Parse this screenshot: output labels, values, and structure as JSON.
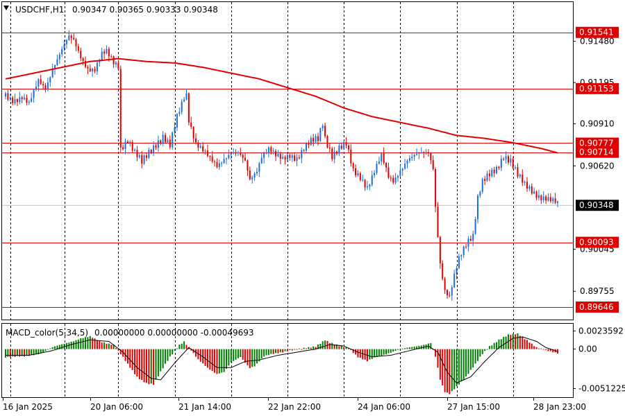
{
  "chart_header": {
    "symbol_tf": "USDCHF,H1",
    "ohlc": "0.90347 0.90365 0.90333 0.90348",
    "menu_icon": "triangle-down-icon"
  },
  "macd_header": {
    "name": "MACD_color(5,34,5)",
    "values": "0.00000000 0.00000000 -0.00049693"
  },
  "colors": {
    "bull_candle": "#1e6fd9",
    "bear_candle": "#e00000",
    "ma_line": "#e00000",
    "level_line": "#e00000",
    "macd_up": "#008000",
    "macd_down": "#e00000",
    "signal_line": "#000000",
    "grid": "#000000"
  },
  "chart_data": [
    {
      "type": "candlestick",
      "title": "USDCHF,H1",
      "y_ticks": [
        "0.91480",
        "0.91195",
        "0.90910",
        "0.90620",
        "0.90045",
        "0.89755"
      ],
      "ylim": [
        0.8956,
        0.9175
      ],
      "price_levels": [
        {
          "label": "0.91541",
          "value": 0.91541
        },
        {
          "label": "0.91153",
          "value": 0.91153
        },
        {
          "label": "0.90777",
          "value": 0.90777
        },
        {
          "label": "0.90714",
          "value": 0.90714
        },
        {
          "label": "0.90093",
          "value": 0.90093
        },
        {
          "label": "0.89646",
          "value": 0.89646
        }
      ],
      "current_price": {
        "label": "0.90348",
        "value": 0.90348
      },
      "x_ticks": [
        "16 Jan 2025",
        "20 Jan 06:00",
        "21 Jan 14:00",
        "22 Jan 22:00",
        "24 Jan 06:00",
        "27 Jan 15:00",
        "28 Jan 23:00"
      ],
      "close_path": [
        [
          0,
          0.911
        ],
        [
          3,
          0.9108
        ],
        [
          7,
          0.911
        ],
        [
          10,
          0.9104
        ],
        [
          14,
          0.912
        ],
        [
          17,
          0.9116
        ],
        [
          20,
          0.913
        ],
        [
          24,
          0.9142
        ],
        [
          27,
          0.915
        ],
        [
          29,
          0.9148
        ],
        [
          32,
          0.9138
        ],
        [
          35,
          0.913
        ],
        [
          38,
          0.9128
        ],
        [
          41,
          0.9138
        ],
        [
          43,
          0.914
        ],
        [
          46,
          0.9134
        ],
        [
          48,
          0.9132
        ],
        [
          49,
          0.9075
        ],
        [
          52,
          0.908
        ],
        [
          55,
          0.907
        ],
        [
          58,
          0.9064
        ],
        [
          61,
          0.9072
        ],
        [
          64,
          0.9078
        ],
        [
          67,
          0.9082
        ],
        [
          70,
          0.9075
        ],
        [
          73,
          0.9095
        ],
        [
          76,
          0.911
        ],
        [
          77,
          0.9112
        ],
        [
          78,
          0.9095
        ],
        [
          81,
          0.9078
        ],
        [
          84,
          0.9072
        ],
        [
          87,
          0.9066
        ],
        [
          90,
          0.9062
        ],
        [
          93,
          0.9068
        ],
        [
          96,
          0.9072
        ],
        [
          99,
          0.907
        ],
        [
          102,
          0.9064
        ],
        [
          104,
          0.9052
        ],
        [
          107,
          0.906
        ],
        [
          109,
          0.907
        ],
        [
          112,
          0.9074
        ],
        [
          115,
          0.9068
        ],
        [
          118,
          0.9066
        ],
        [
          121,
          0.907
        ],
        [
          124,
          0.9068
        ],
        [
          127,
          0.9074
        ],
        [
          130,
          0.9078
        ],
        [
          133,
          0.908
        ],
        [
          135,
          0.9092
        ],
        [
          136,
          0.9082
        ],
        [
          139,
          0.907
        ],
        [
          142,
          0.9074
        ],
        [
          145,
          0.9076
        ],
        [
          148,
          0.9058
        ],
        [
          151,
          0.9055
        ],
        [
          154,
          0.9048
        ],
        [
          157,
          0.9058
        ],
        [
          160,
          0.9068
        ],
        [
          163,
          0.9054
        ],
        [
          165,
          0.9052
        ],
        [
          168,
          0.906
        ],
        [
          171,
          0.9066
        ],
        [
          174,
          0.9068
        ],
        [
          177,
          0.907
        ],
        [
          180,
          0.9072
        ],
        [
          182,
          0.9062
        ],
        [
          183,
          0.9035
        ],
        [
          185,
          0.8995
        ],
        [
          187,
          0.8975
        ],
        [
          189,
          0.897
        ],
        [
          191,
          0.8985
        ],
        [
          193,
          0.8998
        ],
        [
          195,
          0.9006
        ],
        [
          197,
          0.9012
        ],
        [
          199,
          0.9015
        ],
        [
          201,
          0.904
        ],
        [
          203,
          0.905
        ],
        [
          206,
          0.9055
        ],
        [
          209,
          0.906
        ],
        [
          212,
          0.907
        ],
        [
          215,
          0.9066
        ],
        [
          218,
          0.9055
        ],
        [
          221,
          0.9048
        ],
        [
          224,
          0.9045
        ],
        [
          227,
          0.9042
        ],
        [
          230,
          0.904
        ],
        [
          233,
          0.9037
        ],
        [
          235,
          0.90348
        ]
      ],
      "ma_path": [
        [
          0,
          0.9122
        ],
        [
          12,
          0.9126
        ],
        [
          24,
          0.913
        ],
        [
          36,
          0.9134
        ],
        [
          48,
          0.9136
        ],
        [
          60,
          0.9134
        ],
        [
          72,
          0.9133
        ],
        [
          84,
          0.913
        ],
        [
          96,
          0.9126
        ],
        [
          108,
          0.9122
        ],
        [
          120,
          0.9116
        ],
        [
          132,
          0.911
        ],
        [
          144,
          0.9102
        ],
        [
          156,
          0.9096
        ],
        [
          168,
          0.9092
        ],
        [
          180,
          0.9088
        ],
        [
          192,
          0.9083
        ],
        [
          204,
          0.9081
        ],
        [
          216,
          0.9078
        ],
        [
          228,
          0.9074
        ],
        [
          235,
          0.9071
        ]
      ]
    },
    {
      "type": "bar",
      "title": "MACD_color(5,34,5)",
      "y_ticks": [
        "0.0023592",
        "0.00",
        "-0.0051225"
      ],
      "ylim": [
        -0.00625,
        0.0033
      ],
      "histogram_path": [
        [
          0,
          -0.001
        ],
        [
          8,
          -0.001
        ],
        [
          14,
          -0.0006
        ],
        [
          20,
          0.0002
        ],
        [
          26,
          0.0008
        ],
        [
          32,
          0.0014
        ],
        [
          36,
          0.0016
        ],
        [
          40,
          0.001
        ],
        [
          46,
          0.0006
        ],
        [
          48,
          -0.0002
        ],
        [
          52,
          -0.002
        ],
        [
          56,
          -0.0036
        ],
        [
          60,
          -0.0044
        ],
        [
          63,
          -0.0046
        ],
        [
          66,
          -0.003
        ],
        [
          70,
          -0.001
        ],
        [
          74,
          0.0006
        ],
        [
          76,
          0.001
        ],
        [
          78,
          0.0002
        ],
        [
          82,
          -0.0014
        ],
        [
          86,
          -0.0024
        ],
        [
          90,
          -0.0032
        ],
        [
          93,
          -0.003
        ],
        [
          96,
          -0.0018
        ],
        [
          100,
          -0.001
        ],
        [
          104,
          -0.0024
        ],
        [
          106,
          -0.0022
        ],
        [
          110,
          -0.001
        ],
        [
          114,
          -0.0006
        ],
        [
          120,
          -0.0002
        ],
        [
          126,
          0.0
        ],
        [
          132,
          0.0004
        ],
        [
          136,
          0.0012
        ],
        [
          138,
          0.0008
        ],
        [
          142,
          0.0004
        ],
        [
          146,
          0.0002
        ],
        [
          150,
          -0.001
        ],
        [
          154,
          -0.0016
        ],
        [
          158,
          -0.001
        ],
        [
          162,
          -0.0006
        ],
        [
          166,
          -0.0002
        ],
        [
          172,
          0.0002
        ],
        [
          178,
          0.0006
        ],
        [
          181,
          0.0008
        ],
        [
          183,
          -0.001
        ],
        [
          185,
          -0.004
        ],
        [
          187,
          -0.0056
        ],
        [
          189,
          -0.0058
        ],
        [
          192,
          -0.0048
        ],
        [
          196,
          -0.0036
        ],
        [
          200,
          -0.002
        ],
        [
          203,
          -0.0006
        ],
        [
          206,
          0.0004
        ],
        [
          210,
          0.0012
        ],
        [
          214,
          0.0018
        ],
        [
          218,
          0.002
        ],
        [
          222,
          0.0012
        ],
        [
          226,
          0.0002
        ],
        [
          230,
          -0.0002
        ],
        [
          235,
          -0.0005
        ]
      ],
      "signal_path": [
        [
          0,
          -0.0008
        ],
        [
          10,
          -0.0008
        ],
        [
          20,
          -0.0002
        ],
        [
          28,
          0.0006
        ],
        [
          36,
          0.0012
        ],
        [
          44,
          0.001
        ],
        [
          50,
          -0.0004
        ],
        [
          56,
          -0.0024
        ],
        [
          62,
          -0.0038
        ],
        [
          66,
          -0.004
        ],
        [
          72,
          -0.0018
        ],
        [
          78,
          0.0002
        ],
        [
          84,
          -0.001
        ],
        [
          90,
          -0.0024
        ],
        [
          96,
          -0.0024
        ],
        [
          102,
          -0.0016
        ],
        [
          108,
          -0.0014
        ],
        [
          116,
          -0.0008
        ],
        [
          124,
          -0.0004
        ],
        [
          132,
          0.0
        ],
        [
          138,
          0.0006
        ],
        [
          144,
          0.0004
        ],
        [
          150,
          -0.0004
        ],
        [
          156,
          -0.001
        ],
        [
          164,
          -0.0008
        ],
        [
          172,
          -0.0002
        ],
        [
          180,
          0.0004
        ],
        [
          184,
          -0.0004
        ],
        [
          188,
          -0.003
        ],
        [
          192,
          -0.0044
        ],
        [
          198,
          -0.0036
        ],
        [
          204,
          -0.0016
        ],
        [
          210,
          0.0002
        ],
        [
          216,
          0.0014
        ],
        [
          220,
          0.0016
        ],
        [
          226,
          0.001
        ],
        [
          230,
          0.0002
        ],
        [
          235,
          -0.0003
        ]
      ]
    }
  ]
}
